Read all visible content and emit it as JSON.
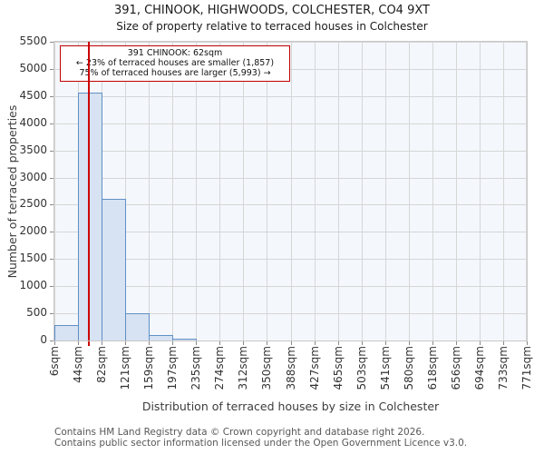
{
  "title": "391, CHINOOK, HIGHWOODS, COLCHESTER, CO4 9XT",
  "subtitle": "Size of property relative to terraced houses in Colchester",
  "annotation": {
    "line1": "391 CHINOOK: 62sqm",
    "line2": "← 23% of terraced houses are smaller (1,857)",
    "line3": "75% of terraced houses are larger (5,993) →"
  },
  "footer": {
    "line1": "Contains HM Land Registry data © Crown copyright and database right 2026.",
    "line2": "Contains public sector information licensed under the Open Government Licence v3.0."
  },
  "chart_data": {
    "type": "bar",
    "title": "391, CHINOOK, HIGHWOODS, COLCHESTER, CO4 9XT",
    "subtitle": "Size of property relative to terraced houses in Colchester",
    "xlabel": "Distribution of terraced houses by size in Colchester",
    "ylabel": "Number of terraced properties",
    "categories": [
      "6sqm",
      "44sqm",
      "82sqm",
      "121sqm",
      "159sqm",
      "197sqm",
      "235sqm",
      "274sqm",
      "312sqm",
      "350sqm",
      "388sqm",
      "427sqm",
      "465sqm",
      "503sqm",
      "541sqm",
      "580sqm",
      "618sqm",
      "656sqm",
      "694sqm",
      "733sqm",
      "771sqm"
    ],
    "values": [
      280,
      4560,
      2600,
      500,
      100,
      35,
      0,
      0,
      0,
      0,
      0,
      0,
      0,
      0,
      0,
      0,
      0,
      0,
      0,
      0
    ],
    "yticks": [
      "0",
      "500",
      "1000",
      "1500",
      "2000",
      "2500",
      "3000",
      "3500",
      "4000",
      "4500",
      "5000",
      "5500"
    ],
    "ylim": [
      0,
      5500
    ],
    "xlim": [
      6,
      771
    ],
    "grid": "on",
    "marker": {
      "value_sqm": 62,
      "label": "391 CHINOOK: 62sqm"
    },
    "colors": {
      "bar_fill": "#d7e2f2",
      "bar_edge": "#6090c6",
      "marker_line": "#cc0000",
      "annotation_border": "#c00000",
      "grid": "#d6d6d6",
      "plot_bg": "#f4f7fc",
      "frame": "#c9c9c9"
    }
  }
}
